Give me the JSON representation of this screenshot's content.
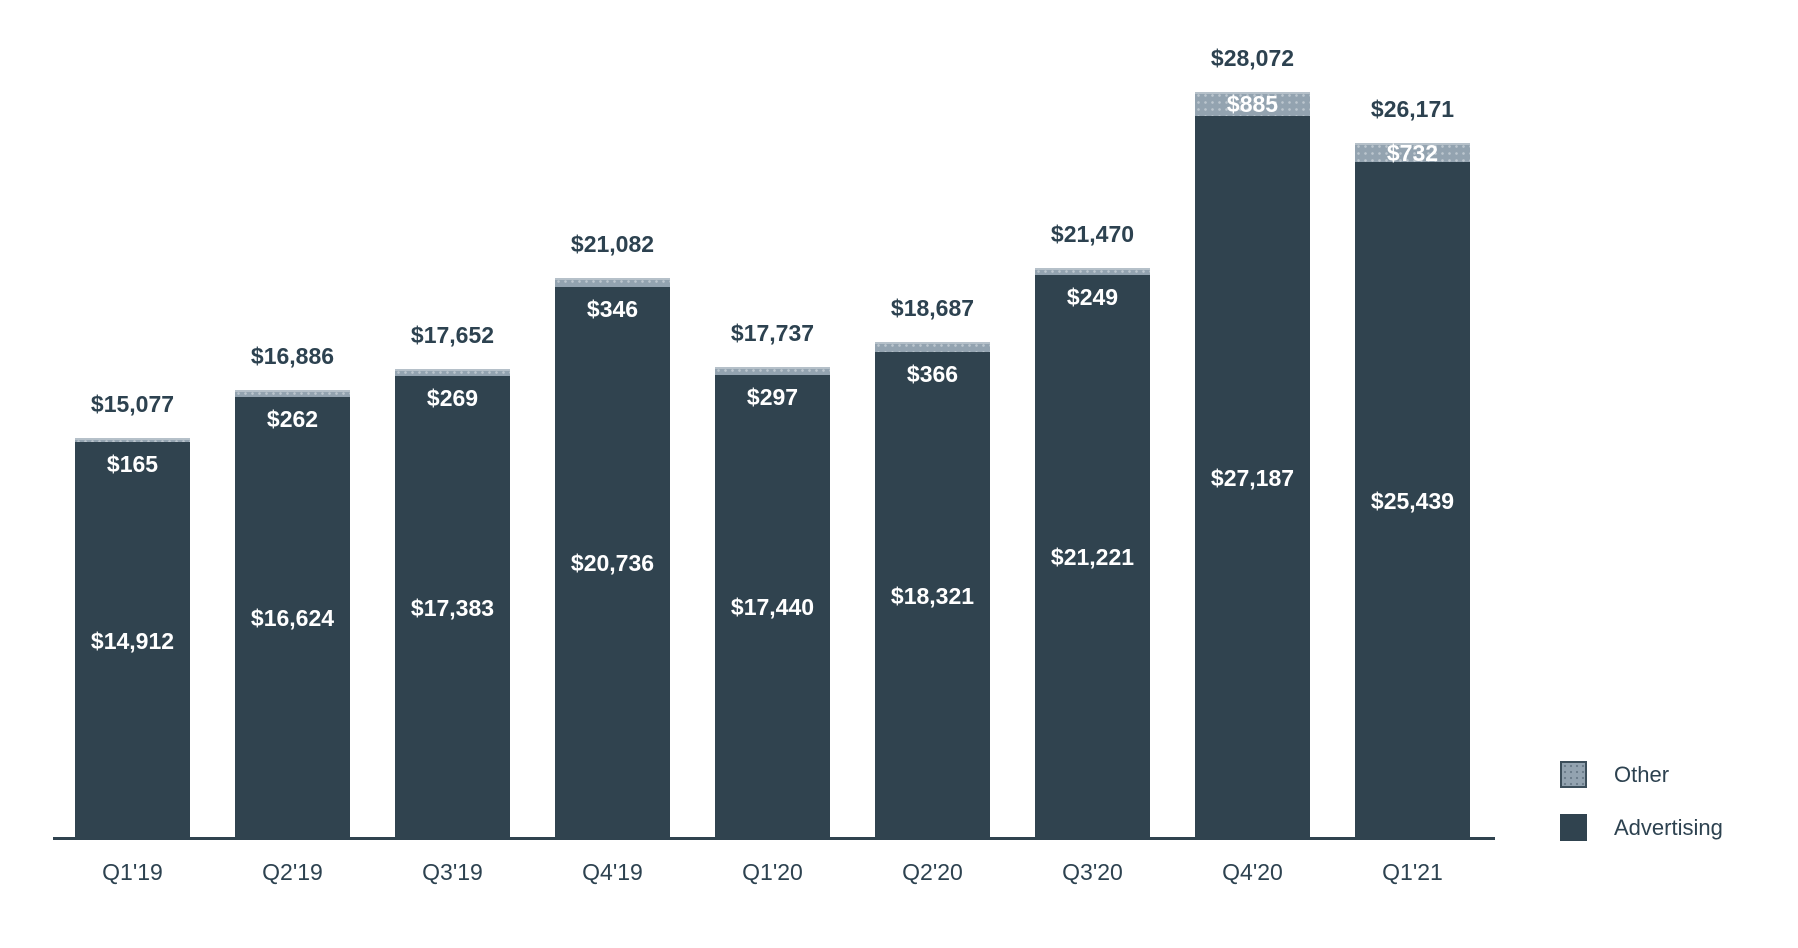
{
  "chart_data": {
    "type": "bar",
    "stacked": true,
    "categories": [
      "Q1'19",
      "Q2'19",
      "Q3'19",
      "Q4'19",
      "Q1'20",
      "Q2'20",
      "Q3'20",
      "Q4'20",
      "Q1'21"
    ],
    "series": [
      {
        "name": "Advertising",
        "color": "#30434F",
        "values": [
          14912,
          16624,
          17383,
          20736,
          17440,
          18321,
          21221,
          27187,
          25439
        ],
        "labels": [
          "$14,912",
          "$16,624",
          "$17,383",
          "$20,736",
          "$17,440",
          "$18,321",
          "$21,221",
          "$27,187",
          "$25,439"
        ]
      },
      {
        "name": "Other",
        "color": "#93A3B0",
        "values": [
          165,
          262,
          269,
          346,
          297,
          366,
          249,
          885,
          732
        ],
        "labels": [
          "$165",
          "$262",
          "$269",
          "$346",
          "$297",
          "$366",
          "$249",
          "$885",
          "$732"
        ]
      }
    ],
    "totals": {
      "values": [
        15077,
        16886,
        17652,
        21082,
        17737,
        18687,
        21470,
        28072,
        26171
      ],
      "labels": [
        "$15,077",
        "$16,886",
        "$17,652",
        "$21,082",
        "$17,737",
        "$18,687",
        "$21,470",
        "$28,072",
        "$26,171"
      ]
    },
    "legend": {
      "position": "bottom-right",
      "items": [
        {
          "label": "Other"
        },
        {
          "label": "Advertising"
        }
      ]
    },
    "axes": {
      "x_tick_labels": [
        "Q1'19",
        "Q2'19",
        "Q3'19",
        "Q4'19",
        "Q1'20",
        "Q2'20",
        "Q3'20",
        "Q4'20",
        "Q1'21"
      ],
      "y_axis_visible": false,
      "gridlines": false,
      "ylim": [
        0,
        28072
      ]
    }
  },
  "colors": {
    "background": "#FFFFFF",
    "advertising": "#30434F",
    "other": "#93A3B0",
    "text_dark": "#2D4250",
    "label_on_bar": "#FFFFFF",
    "axis_line": "#30434F"
  }
}
